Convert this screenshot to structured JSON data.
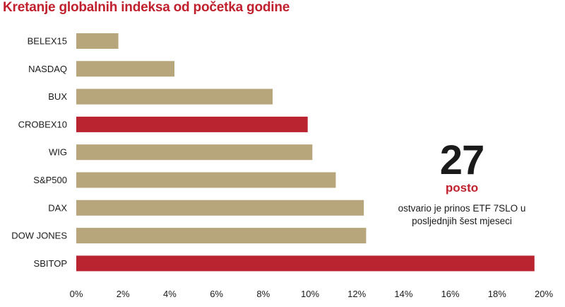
{
  "chart_data": {
    "type": "bar",
    "orientation": "horizontal",
    "title": "Kretanje globalnih indeksa od početka godine",
    "categories": [
      "BELEX15",
      "NASDAQ",
      "BUX",
      "CROBEX10",
      "WIG",
      "S&P500",
      "DAX",
      "DOW JONES",
      "SBITOP"
    ],
    "values": [
      1.8,
      4.2,
      8.4,
      9.9,
      10.1,
      11.1,
      12.3,
      12.4,
      19.6
    ],
    "highlighted": [
      "CROBEX10",
      "SBITOP"
    ],
    "xlim": [
      0,
      20
    ],
    "xticks": [
      "0%",
      "2%",
      "4%",
      "6%",
      "8%",
      "10%",
      "12%",
      "14%",
      "16%",
      "18%",
      "20%"
    ],
    "xlabel": "",
    "ylabel": "",
    "grid": false,
    "colors": {
      "default": "#b7a57c",
      "highlight": "#b92430"
    }
  },
  "callout": {
    "number": "27",
    "unit": "posto",
    "text_line1": "ostvario je prinos ETF 7SLO u",
    "text_line2": "posljednjih šest mjeseci"
  }
}
